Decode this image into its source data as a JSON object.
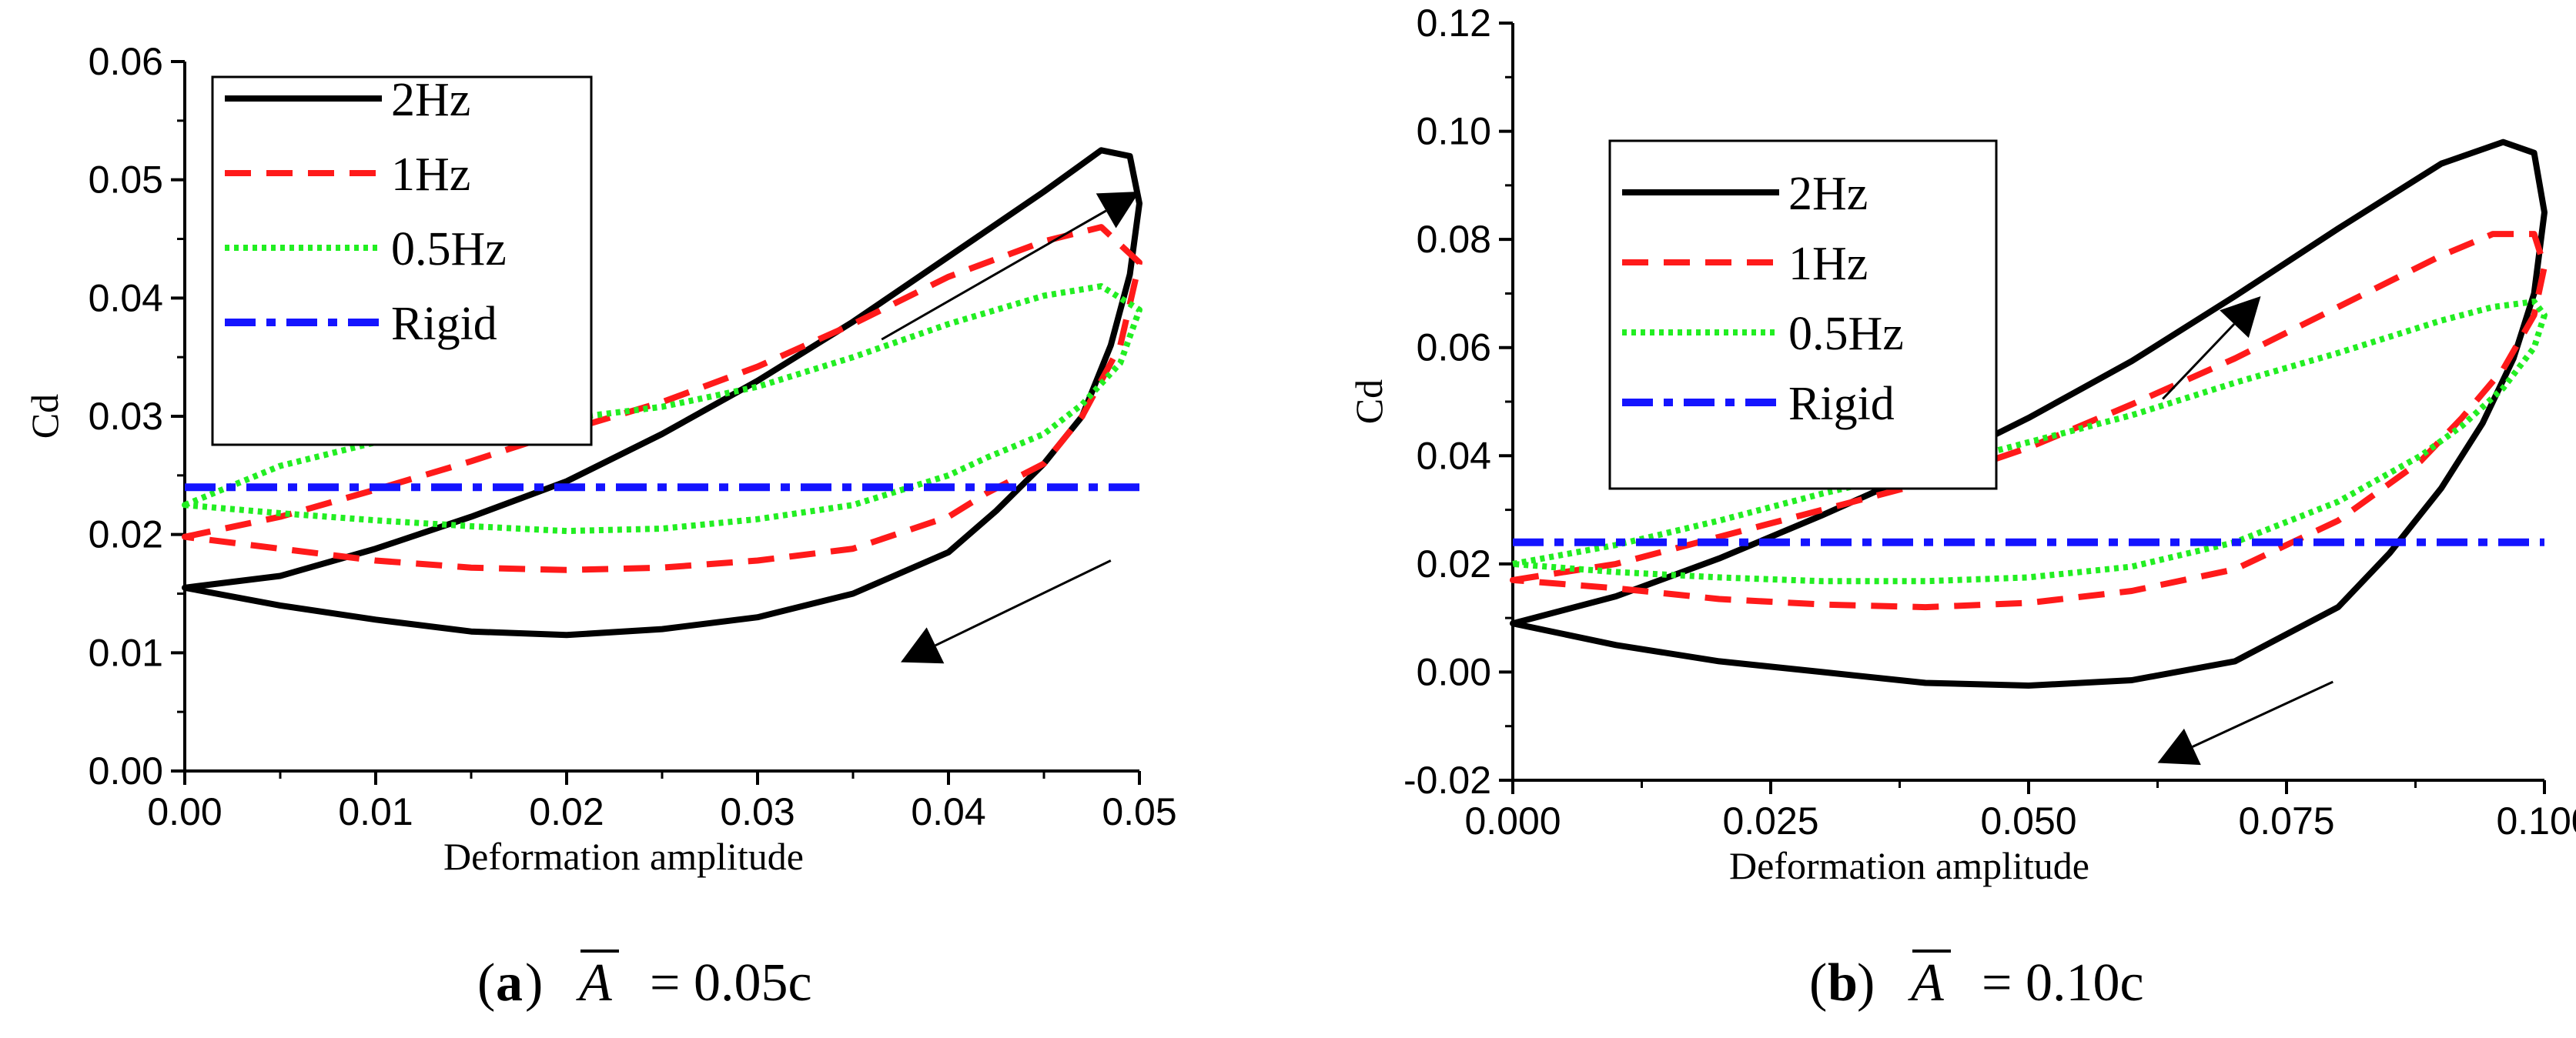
{
  "chart_data": [
    {
      "type": "line",
      "panel": "a",
      "ylabel": "Cd",
      "xlabel": "Deformation amplitude",
      "xlim": [
        0,
        0.05
      ],
      "ylim": [
        0,
        0.06
      ],
      "xticks": [
        "0.00",
        "0.01",
        "0.02",
        "0.03",
        "0.04",
        "0.05"
      ],
      "yticks": [
        "0.00",
        "0.01",
        "0.02",
        "0.03",
        "0.04",
        "0.05",
        "0.06"
      ],
      "legend_position": "top-left",
      "caption": {
        "letter": "a",
        "symbol": "A",
        "text": "= 0.05c"
      },
      "annotations": [
        {
          "kind": "arrow",
          "meaning": "increasing branch",
          "from": [
            0.0365,
            0.0365
          ],
          "to": [
            0.05,
            0.049
          ]
        },
        {
          "kind": "arrow",
          "meaning": "decreasing branch",
          "from": [
            0.0485,
            0.0178
          ],
          "to": [
            0.0375,
            0.0092
          ]
        }
      ],
      "series": [
        {
          "name": "2Hz",
          "color": "#000000",
          "style": "solid",
          "closed": true,
          "x": [
            0.0,
            0.005,
            0.01,
            0.015,
            0.02,
            0.025,
            0.03,
            0.035,
            0.04,
            0.045,
            0.048,
            0.0495,
            0.05,
            0.0495,
            0.0485,
            0.047,
            0.045,
            0.0425,
            0.04,
            0.035,
            0.03,
            0.025,
            0.02,
            0.015,
            0.01,
            0.005,
            0.0
          ],
          "y": [
            0.0155,
            0.0165,
            0.0188,
            0.0215,
            0.0245,
            0.0285,
            0.033,
            0.038,
            0.0435,
            0.049,
            0.0525,
            0.052,
            0.048,
            0.042,
            0.036,
            0.03,
            0.026,
            0.022,
            0.0185,
            0.015,
            0.013,
            0.012,
            0.0115,
            0.0118,
            0.0128,
            0.014,
            0.0155
          ]
        },
        {
          "name": "1Hz",
          "color": "#ff1a1a",
          "style": "dashed",
          "closed": true,
          "x": [
            0.0,
            0.005,
            0.01,
            0.015,
            0.02,
            0.025,
            0.03,
            0.035,
            0.04,
            0.045,
            0.048,
            0.05,
            0.049,
            0.047,
            0.045,
            0.042,
            0.04,
            0.035,
            0.03,
            0.025,
            0.02,
            0.015,
            0.01,
            0.005,
            0.0
          ],
          "y": [
            0.0198,
            0.0215,
            0.0238,
            0.0262,
            0.0288,
            0.0312,
            0.0342,
            0.0378,
            0.0418,
            0.0448,
            0.046,
            0.043,
            0.036,
            0.03,
            0.026,
            0.0235,
            0.0215,
            0.0188,
            0.0178,
            0.0172,
            0.017,
            0.0172,
            0.0178,
            0.0188,
            0.0198
          ]
        },
        {
          "name": "0.5Hz",
          "color": "#22ee22",
          "style": "dotted",
          "closed": true,
          "x": [
            0.0,
            0.005,
            0.01,
            0.015,
            0.02,
            0.025,
            0.03,
            0.035,
            0.04,
            0.045,
            0.048,
            0.05,
            0.049,
            0.047,
            0.045,
            0.042,
            0.04,
            0.035,
            0.03,
            0.025,
            0.02,
            0.015,
            0.01,
            0.005,
            0.0
          ],
          "y": [
            0.0225,
            0.0258,
            0.0278,
            0.029,
            0.0298,
            0.0308,
            0.0325,
            0.035,
            0.0378,
            0.0402,
            0.041,
            0.039,
            0.0345,
            0.031,
            0.0285,
            0.0265,
            0.025,
            0.0225,
            0.0213,
            0.0205,
            0.0203,
            0.0207,
            0.0212,
            0.0218,
            0.0225
          ]
        },
        {
          "name": "Rigid",
          "color": "#1414ff",
          "style": "dashdot",
          "closed": false,
          "x": [
            0.0,
            0.05
          ],
          "y": [
            0.024,
            0.024
          ]
        }
      ]
    },
    {
      "type": "line",
      "panel": "b",
      "ylabel": "Cd",
      "xlabel": "Deformation amplitude",
      "xlim": [
        0,
        0.1
      ],
      "ylim": [
        -0.02,
        0.12
      ],
      "xticks": [
        "0.000",
        "0.025",
        "0.050",
        "0.075",
        "0.100"
      ],
      "yticks": [
        "-0.02",
        "0.00",
        "0.02",
        "0.04",
        "0.06",
        "0.08",
        "0.10",
        "0.12"
      ],
      "legend_position": "top-left",
      "caption": {
        "letter": "b",
        "symbol": "A",
        "text": "= 0.10c"
      },
      "annotations": [
        {
          "kind": "arrow",
          "meaning": "increasing branch",
          "from": [
            0.063,
            0.0505
          ],
          "to": [
            0.0725,
            0.0695
          ]
        },
        {
          "kind": "arrow",
          "meaning": "decreasing branch",
          "from": [
            0.0795,
            -0.0018
          ],
          "to": [
            0.0625,
            -0.0168
          ]
        }
      ],
      "series": [
        {
          "name": "2Hz",
          "color": "#000000",
          "style": "solid",
          "closed": true,
          "x": [
            0.0,
            0.01,
            0.02,
            0.03,
            0.04,
            0.05,
            0.06,
            0.07,
            0.08,
            0.09,
            0.096,
            0.099,
            0.1,
            0.099,
            0.097,
            0.094,
            0.09,
            0.085,
            0.08,
            0.07,
            0.06,
            0.05,
            0.04,
            0.03,
            0.02,
            0.01,
            0.0
          ],
          "y": [
            0.009,
            0.014,
            0.021,
            0.029,
            0.0375,
            0.047,
            0.0575,
            0.0695,
            0.082,
            0.094,
            0.098,
            0.096,
            0.085,
            0.07,
            0.058,
            0.046,
            0.034,
            0.022,
            0.012,
            0.002,
            -0.0015,
            -0.0025,
            -0.002,
            0.0,
            0.002,
            0.005,
            0.009
          ]
        },
        {
          "name": "1Hz",
          "color": "#ff1a1a",
          "style": "dashed",
          "closed": true,
          "x": [
            0.0,
            0.01,
            0.02,
            0.03,
            0.04,
            0.05,
            0.06,
            0.07,
            0.08,
            0.09,
            0.095,
            0.099,
            0.1,
            0.099,
            0.096,
            0.092,
            0.088,
            0.08,
            0.07,
            0.06,
            0.05,
            0.04,
            0.03,
            0.02,
            0.01,
            0.0
          ],
          "y": [
            0.017,
            0.02,
            0.025,
            0.03,
            0.035,
            0.0415,
            0.0495,
            0.058,
            0.0675,
            0.077,
            0.081,
            0.081,
            0.075,
            0.066,
            0.056,
            0.047,
            0.039,
            0.028,
            0.019,
            0.015,
            0.0128,
            0.012,
            0.0125,
            0.0135,
            0.0155,
            0.017
          ]
        },
        {
          "name": "0.5Hz",
          "color": "#22ee22",
          "style": "dotted",
          "closed": true,
          "x": [
            0.0,
            0.01,
            0.02,
            0.03,
            0.04,
            0.05,
            0.06,
            0.07,
            0.08,
            0.09,
            0.095,
            0.099,
            0.1,
            0.099,
            0.096,
            0.092,
            0.088,
            0.08,
            0.07,
            0.06,
            0.05,
            0.04,
            0.03,
            0.02,
            0.01,
            0.0
          ],
          "y": [
            0.02,
            0.0235,
            0.028,
            0.033,
            0.0375,
            0.0425,
            0.0475,
            0.0535,
            0.059,
            0.065,
            0.0675,
            0.0685,
            0.066,
            0.06,
            0.0525,
            0.0455,
            0.04,
            0.0315,
            0.024,
            0.0195,
            0.0175,
            0.0168,
            0.0168,
            0.0175,
            0.0185,
            0.02
          ]
        },
        {
          "name": "Rigid",
          "color": "#1414ff",
          "style": "dashdot",
          "closed": false,
          "x": [
            0.0,
            0.1
          ],
          "y": [
            0.024,
            0.024
          ]
        }
      ]
    }
  ]
}
